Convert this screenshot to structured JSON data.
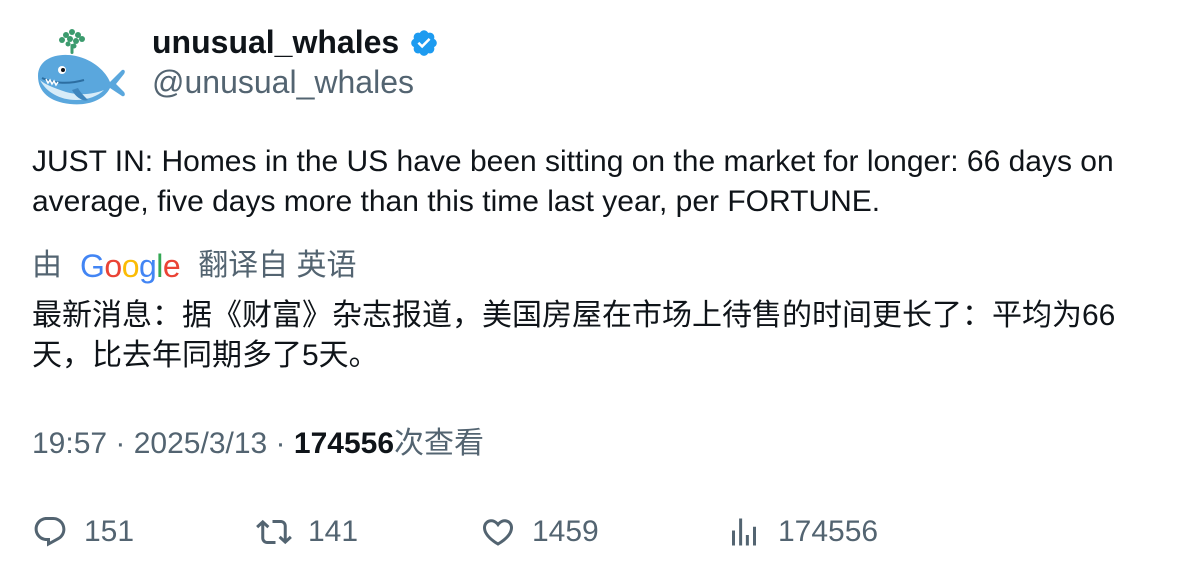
{
  "author": {
    "display_name": "unusual_whales",
    "handle": "@unusual_whales",
    "verified": true,
    "verified_color": "#1D9BF0",
    "avatar_icon": "whale-avatar-icon"
  },
  "tweet": {
    "text": "JUST IN: Homes in the US have been sitting on the market for longer: 66 days on average, five days more than this time last year, per FORTUNE."
  },
  "translation": {
    "by_label": "由",
    "provider_letters": [
      "G",
      "o",
      "o",
      "g",
      "l",
      "e"
    ],
    "from_label": "翻译自 英语",
    "text": "最新消息：据《财富》杂志报道，美国房屋在市场上待售的时间更长了：平均为66天，比去年同期多了5天。"
  },
  "meta": {
    "time": "19:57",
    "separator": " · ",
    "date": "2025/3/13",
    "views_count": "174556",
    "views_label": "次查看"
  },
  "actions": {
    "replies": "151",
    "retweets": "141",
    "likes": "1459",
    "views": "174556"
  },
  "colors": {
    "text_primary": "#0f1419",
    "text_secondary": "#536471",
    "google_blue": "#4285F4",
    "google_red": "#EA4335",
    "google_yellow": "#FBBC05",
    "google_green": "#34A853"
  }
}
